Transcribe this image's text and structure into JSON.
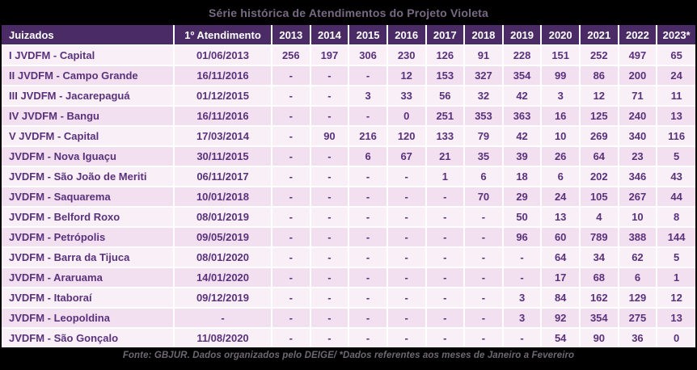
{
  "title": "Série histórica de Atendimentos do Projeto Violeta",
  "footer": "Fonte: GBJUR. Dados organizados pelo DEIGE/ *Dados referentes aos meses de Janeiro a Fevereiro",
  "chart_data": {
    "type": "table",
    "title": "Série histórica de Atendimentos do Projeto Violeta",
    "columns": [
      "Juizados",
      "1º Atendimento",
      "2013",
      "2014",
      "2015",
      "2016",
      "2017",
      "2018",
      "2019",
      "2020",
      "2021",
      "2022",
      "2023*"
    ],
    "rows": [
      [
        "I JVDFM - Capital",
        "01/06/2013",
        "256",
        "197",
        "306",
        "230",
        "126",
        "91",
        "228",
        "151",
        "252",
        "497",
        "65"
      ],
      [
        "II JVDFM - Campo Grande",
        "16/11/2016",
        "-",
        "-",
        "-",
        "12",
        "153",
        "327",
        "354",
        "99",
        "86",
        "200",
        "24"
      ],
      [
        "III JVDFM - Jacarepaguá",
        "01/12/2015",
        "-",
        "-",
        "3",
        "33",
        "56",
        "32",
        "42",
        "3",
        "12",
        "71",
        "11"
      ],
      [
        "IV JVDFM - Bangu",
        "16/11/2016",
        "-",
        "-",
        "-",
        "0",
        "251",
        "353",
        "363",
        "16",
        "125",
        "240",
        "13"
      ],
      [
        "V JVDFM - Capital",
        "17/03/2014",
        "-",
        "90",
        "216",
        "120",
        "133",
        "79",
        "42",
        "10",
        "269",
        "340",
        "116"
      ],
      [
        "JVDFM - Nova Iguaçu",
        "30/11/2015",
        "-",
        "-",
        "6",
        "67",
        "21",
        "35",
        "39",
        "26",
        "64",
        "23",
        "5"
      ],
      [
        "JVDFM - São João de Meriti",
        "06/11/2017",
        "-",
        "-",
        "-",
        "-",
        "1",
        "6",
        "18",
        "6",
        "202",
        "346",
        "43"
      ],
      [
        "JVDFM - Saquarema",
        "10/01/2018",
        "-",
        "-",
        "-",
        "-",
        "-",
        "70",
        "29",
        "24",
        "105",
        "267",
        "44"
      ],
      [
        "JVDFM - Belford Roxo",
        "08/01/2019",
        "-",
        "-",
        "-",
        "-",
        "-",
        "-",
        "50",
        "13",
        "4",
        "10",
        "8"
      ],
      [
        "JVDFM - Petrópolis",
        "09/05/2019",
        "-",
        "-",
        "-",
        "-",
        "-",
        "-",
        "96",
        "60",
        "789",
        "388",
        "144"
      ],
      [
        "JVDFM - Barra da Tijuca",
        "08/01/2020",
        "-",
        "-",
        "-",
        "-",
        "-",
        "-",
        "-",
        "64",
        "34",
        "62",
        "5"
      ],
      [
        "JVDFM - Araruama",
        "14/01/2020",
        "-",
        "-",
        "-",
        "-",
        "-",
        "-",
        "-",
        "17",
        "68",
        "6",
        "1"
      ],
      [
        "JVDFM - Itaboraí",
        "09/12/2019",
        "-",
        "-",
        "-",
        "-",
        "-",
        "-",
        "3",
        "84",
        "162",
        "129",
        "12"
      ],
      [
        "JVDFM - Leopoldina",
        "-",
        "-",
        "-",
        "-",
        "-",
        "-",
        "-",
        "3",
        "92",
        "354",
        "275",
        "13"
      ],
      [
        "JVDFM - São Gonçalo",
        "11/08/2020",
        "-",
        "-",
        "-",
        "-",
        "-",
        "-",
        "-",
        "54",
        "90",
        "36",
        "0"
      ]
    ]
  },
  "colors": {
    "background": "#000000",
    "header_bg": "#4a2b66",
    "header_text": "#ffffff",
    "row_light": "#f8eff7",
    "row_dark": "#f2dff0",
    "cell_text": "#5a327c",
    "title_text": "#786a83",
    "footer_text": "#6e6872",
    "grid_line": "#ffffff"
  }
}
